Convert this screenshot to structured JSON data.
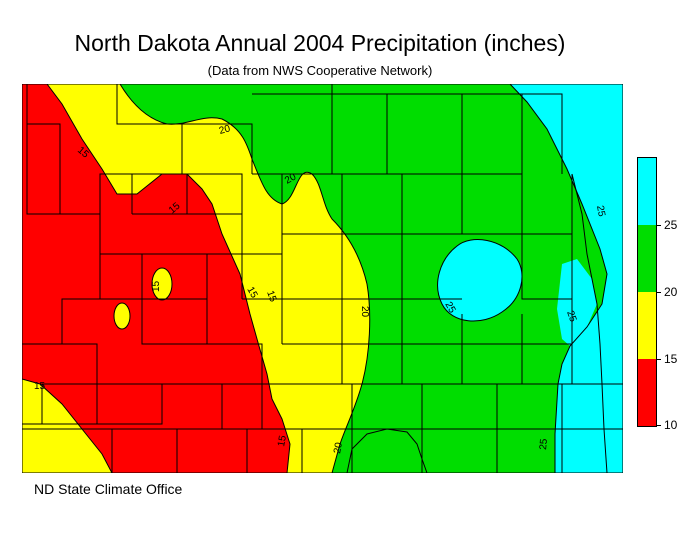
{
  "title": "North Dakota Annual 2004 Precipitation (inches)",
  "subtitle": "(Data from NWS Cooperative Network)",
  "credit": "ND State Climate Office",
  "colors": {
    "lt15": "#ff0000",
    "15to20": "#ffff00",
    "20to25": "#00dd00",
    "gt25": "#00ffff",
    "lines": "#000000"
  },
  "legend": {
    "bands": [
      {
        "range": "10-15",
        "color": "#ff0000"
      },
      {
        "range": "15-20",
        "color": "#ffff00"
      },
      {
        "range": "20-25",
        "color": "#00dd00"
      },
      {
        "range": "25+",
        "color": "#00ffff"
      }
    ],
    "labels": [
      "25",
      "20",
      "15",
      "10"
    ]
  },
  "contour_labels": [
    "15",
    "15",
    "20",
    "20",
    "15",
    "15",
    "15",
    "20",
    "25",
    "25",
    "25",
    "15",
    "15",
    "20",
    "25"
  ]
}
